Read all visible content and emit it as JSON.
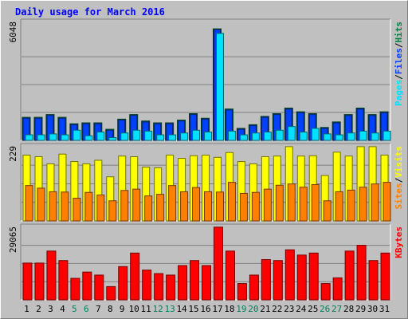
{
  "chart_data": {
    "type": "bar",
    "title": "Daily usage for March 2016",
    "categories": [
      "1",
      "2",
      "3",
      "4",
      "5",
      "6",
      "7",
      "8",
      "9",
      "10",
      "11",
      "12",
      "13",
      "14",
      "15",
      "16",
      "17",
      "18",
      "19",
      "20",
      "21",
      "22",
      "23",
      "24",
      "25",
      "26",
      "27",
      "28",
      "29",
      "30",
      "31"
    ],
    "weekend_days": [
      5,
      6,
      12,
      13,
      19,
      20,
      26,
      27
    ],
    "panels": [
      {
        "id": "hits",
        "max_label": "6048",
        "ylim": [
          0,
          6048
        ],
        "right_label": [
          "Pages",
          "/",
          "Files",
          "/",
          "Hits"
        ],
        "series": [
          {
            "name": "Hits",
            "color": "#008040",
            "values": [
              1250,
              1250,
              1400,
              1250,
              900,
              950,
              950,
              600,
              1150,
              1400,
              1050,
              950,
              950,
              1100,
              1450,
              1200,
              6048,
              1700,
              650,
              850,
              1300,
              1450,
              1750,
              1550,
              1450,
              700,
              1000,
              1400,
              1750,
              1400,
              1550
            ]
          },
          {
            "name": "Files",
            "color": "#0040ff",
            "values": [
              1200,
              1200,
              1350,
              1200,
              850,
              900,
              900,
              550,
              1100,
              1350,
              1000,
              900,
              900,
              1050,
              1400,
              1150,
              6000,
              1650,
              600,
              800,
              1250,
              1400,
              1700,
              1500,
              1400,
              650,
              950,
              1350,
              1700,
              1350,
              1500
            ]
          },
          {
            "name": "Pages",
            "color": "#00e0ff",
            "values": [
              300,
              300,
              350,
              300,
              550,
              250,
              450,
              150,
              400,
              550,
              500,
              300,
              300,
              400,
              550,
              450,
              5800,
              500,
              300,
              400,
              450,
              550,
              750,
              450,
              650,
              350,
              300,
              400,
              500,
              400,
              500
            ]
          }
        ]
      },
      {
        "id": "visits",
        "max_label": "229",
        "ylim": [
          0,
          229
        ],
        "right_label": [
          "Sites",
          "/",
          "Visits"
        ],
        "series": [
          {
            "name": "Visits",
            "color": "#ffff00",
            "values": [
              203,
              198,
              176,
              206,
              183,
              176,
              187,
              136,
              200,
              198,
              166,
              164,
              203,
              193,
              201,
              203,
              196,
              211,
              183,
              176,
              198,
              200,
              229,
              200,
              201,
              140,
              212,
              200,
              229,
              229,
              203
            ]
          },
          {
            "name": "Sites",
            "color": "#ff8000",
            "values": [
              109,
              101,
              90,
              89,
              70,
              88,
              80,
              62,
              94,
              98,
              77,
              82,
              109,
              90,
              103,
              90,
              89,
              119,
              85,
              88,
              98,
              110,
              114,
              104,
              112,
              62,
              90,
              95,
              104,
              114,
              119
            ]
          }
        ]
      },
      {
        "id": "kbytes",
        "max_label": "29065",
        "ylim": [
          0,
          29065
        ],
        "right_label": [
          "KBytes"
        ],
        "series": [
          {
            "name": "KBytes",
            "color": "#ff0000",
            "values": [
              14700,
              14700,
              19500,
              15700,
              8600,
              11100,
              9900,
              5300,
              13300,
              18700,
              11900,
              10500,
              9900,
              13700,
              15700,
              13700,
              29065,
              19500,
              6500,
              9900,
              16100,
              15700,
              20000,
              17900,
              18700,
              6500,
              8800,
              19500,
              21800,
              15700,
              18700
            ]
          }
        ]
      }
    ]
  }
}
